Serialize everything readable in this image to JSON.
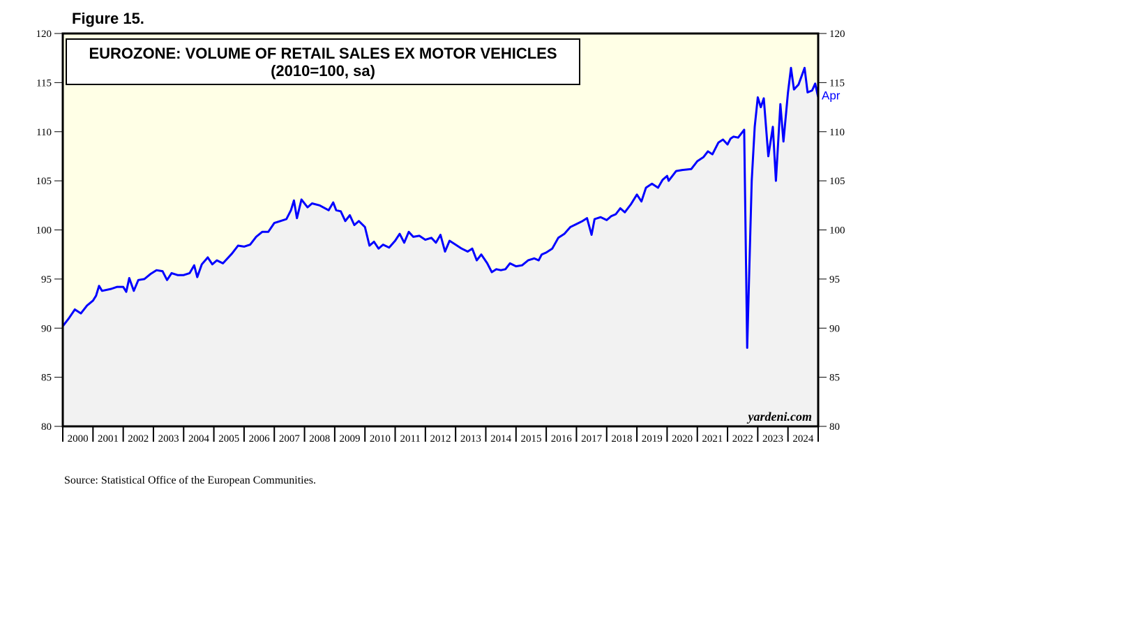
{
  "figure_label": "Figure 15.",
  "source": "Source: Statistical Office of the European Communities.",
  "watermark": "yardeni.com",
  "colors": {
    "plot_background": "#ffffe6",
    "area_fill": "#f2f2f2",
    "line": "#0000ff",
    "axis": "#000000"
  },
  "chart_data": {
    "type": "line",
    "title": "EUROZONE: VOLUME OF RETAIL SALES EX MOTOR VEHICLES",
    "subtitle": "(2010=100, sa)",
    "xlabel": "",
    "ylabel": "",
    "ylim": [
      80,
      120
    ],
    "xlim": [
      2000,
      2025
    ],
    "yticks": [
      80,
      85,
      90,
      95,
      100,
      105,
      110,
      115,
      120
    ],
    "x_tick_labels": [
      "2000",
      "2001",
      "2002",
      "2003",
      "2004",
      "2005",
      "2006",
      "2007",
      "2008",
      "2009",
      "2010",
      "2011",
      "2012",
      "2013",
      "2014",
      "2015",
      "2016",
      "2017",
      "2018",
      "2019",
      "2020",
      "2021",
      "2022",
      "2023",
      "2024"
    ],
    "end_label": "Apr",
    "area_fill": true,
    "series": [
      {
        "name": "Retail sales ex motor vehicles",
        "points": [
          [
            2000.0,
            90.2
          ],
          [
            2000.2,
            91.0
          ],
          [
            2000.4,
            91.9
          ],
          [
            2000.6,
            91.5
          ],
          [
            2000.8,
            92.3
          ],
          [
            2001.0,
            92.8
          ],
          [
            2001.1,
            93.3
          ],
          [
            2001.2,
            94.3
          ],
          [
            2001.3,
            93.8
          ],
          [
            2001.6,
            94.0
          ],
          [
            2001.8,
            94.2
          ],
          [
            2002.0,
            94.2
          ],
          [
            2002.1,
            93.7
          ],
          [
            2002.2,
            95.1
          ],
          [
            2002.35,
            93.8
          ],
          [
            2002.5,
            94.9
          ],
          [
            2002.7,
            95.0
          ],
          [
            2002.9,
            95.5
          ],
          [
            2003.1,
            95.9
          ],
          [
            2003.3,
            95.8
          ],
          [
            2003.45,
            94.9
          ],
          [
            2003.6,
            95.6
          ],
          [
            2003.8,
            95.4
          ],
          [
            2004.0,
            95.4
          ],
          [
            2004.2,
            95.6
          ],
          [
            2004.35,
            96.4
          ],
          [
            2004.45,
            95.2
          ],
          [
            2004.6,
            96.5
          ],
          [
            2004.8,
            97.2
          ],
          [
            2004.95,
            96.5
          ],
          [
            2005.1,
            96.9
          ],
          [
            2005.3,
            96.6
          ],
          [
            2005.6,
            97.6
          ],
          [
            2005.8,
            98.4
          ],
          [
            2006.0,
            98.3
          ],
          [
            2006.2,
            98.5
          ],
          [
            2006.4,
            99.3
          ],
          [
            2006.6,
            99.8
          ],
          [
            2006.8,
            99.8
          ],
          [
            2007.0,
            100.7
          ],
          [
            2007.2,
            100.9
          ],
          [
            2007.4,
            101.1
          ],
          [
            2007.55,
            102.0
          ],
          [
            2007.65,
            103.0
          ],
          [
            2007.75,
            101.2
          ],
          [
            2007.9,
            103.1
          ],
          [
            2008.1,
            102.3
          ],
          [
            2008.25,
            102.7
          ],
          [
            2008.5,
            102.5
          ],
          [
            2008.8,
            102.0
          ],
          [
            2008.95,
            102.8
          ],
          [
            2009.05,
            102.0
          ],
          [
            2009.2,
            101.9
          ],
          [
            2009.35,
            100.9
          ],
          [
            2009.5,
            101.5
          ],
          [
            2009.65,
            100.5
          ],
          [
            2009.8,
            100.9
          ],
          [
            2010.0,
            100.3
          ],
          [
            2010.15,
            98.4
          ],
          [
            2010.3,
            98.8
          ],
          [
            2010.45,
            98.1
          ],
          [
            2010.6,
            98.5
          ],
          [
            2010.8,
            98.2
          ],
          [
            2011.0,
            98.9
          ],
          [
            2011.15,
            99.6
          ],
          [
            2011.3,
            98.7
          ],
          [
            2011.45,
            99.8
          ],
          [
            2011.6,
            99.3
          ],
          [
            2011.8,
            99.4
          ],
          [
            2012.0,
            99.0
          ],
          [
            2012.2,
            99.2
          ],
          [
            2012.35,
            98.7
          ],
          [
            2012.5,
            99.5
          ],
          [
            2012.65,
            97.8
          ],
          [
            2012.8,
            98.9
          ],
          [
            2013.0,
            98.5
          ],
          [
            2013.2,
            98.1
          ],
          [
            2013.4,
            97.8
          ],
          [
            2013.55,
            98.1
          ],
          [
            2013.7,
            96.9
          ],
          [
            2013.85,
            97.5
          ],
          [
            2014.05,
            96.6
          ],
          [
            2014.2,
            95.7
          ],
          [
            2014.35,
            96.0
          ],
          [
            2014.5,
            95.9
          ],
          [
            2014.65,
            96.0
          ],
          [
            2014.8,
            96.6
          ],
          [
            2015.0,
            96.3
          ],
          [
            2015.2,
            96.4
          ],
          [
            2015.4,
            96.9
          ],
          [
            2015.6,
            97.1
          ],
          [
            2015.75,
            96.9
          ],
          [
            2015.85,
            97.5
          ],
          [
            2016.0,
            97.7
          ],
          [
            2016.2,
            98.1
          ],
          [
            2016.4,
            99.2
          ],
          [
            2016.6,
            99.6
          ],
          [
            2016.8,
            100.3
          ],
          [
            2017.0,
            100.6
          ],
          [
            2017.2,
            100.9
          ],
          [
            2017.35,
            101.2
          ],
          [
            2017.5,
            99.5
          ],
          [
            2017.6,
            101.1
          ],
          [
            2017.8,
            101.3
          ],
          [
            2018.0,
            101.0
          ],
          [
            2018.15,
            101.4
          ],
          [
            2018.3,
            101.6
          ],
          [
            2018.45,
            102.2
          ],
          [
            2018.6,
            101.8
          ],
          [
            2018.8,
            102.6
          ],
          [
            2019.0,
            103.6
          ],
          [
            2019.15,
            102.9
          ],
          [
            2019.3,
            104.3
          ],
          [
            2019.5,
            104.7
          ],
          [
            2019.7,
            104.3
          ],
          [
            2019.85,
            105.1
          ],
          [
            2020.0,
            105.5
          ],
          [
            2020.05,
            105.0
          ],
          [
            2020.3,
            106.0
          ],
          [
            2020.5,
            106.1
          ],
          [
            2020.8,
            106.2
          ],
          [
            2021.0,
            107.0
          ],
          [
            2021.2,
            107.4
          ],
          [
            2021.35,
            108.0
          ],
          [
            2021.5,
            107.7
          ],
          [
            2021.7,
            108.9
          ],
          [
            2021.85,
            109.2
          ],
          [
            2022.0,
            108.7
          ],
          [
            2022.1,
            109.3
          ],
          [
            2022.2,
            109.5
          ],
          [
            2022.35,
            109.4
          ],
          [
            2022.5,
            110.0
          ],
          [
            2022.55,
            110.2
          ],
          [
            2022.65,
            88.0
          ],
          [
            2022.8,
            105.0
          ],
          [
            2022.9,
            110.5
          ],
          [
            2023.0,
            113.5
          ],
          [
            2023.1,
            112.5
          ],
          [
            2023.2,
            113.4
          ],
          [
            2023.35,
            107.5
          ],
          [
            2023.5,
            110.5
          ],
          [
            2023.6,
            105.0
          ],
          [
            2023.75,
            112.8
          ],
          [
            2023.85,
            109.0
          ],
          [
            2024.0,
            114.0
          ],
          [
            2024.1,
            116.5
          ],
          [
            2024.2,
            114.3
          ],
          [
            2024.35,
            114.8
          ],
          [
            2024.55,
            116.5
          ],
          [
            2024.65,
            114.0
          ],
          [
            2024.8,
            114.2
          ],
          [
            2024.9,
            114.9
          ],
          [
            2025.0,
            113.5
          ]
        ]
      }
    ]
  }
}
